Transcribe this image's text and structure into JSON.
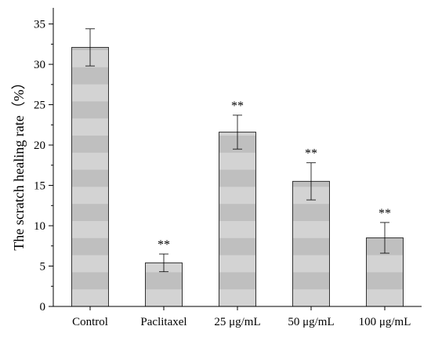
{
  "chart_data": {
    "type": "bar",
    "title": "",
    "xlabel": "",
    "ylabel": "The scratch healing rate（%）",
    "ylim": [
      0,
      37
    ],
    "yticks": [
      0,
      5,
      10,
      15,
      20,
      25,
      30,
      35
    ],
    "grid": false,
    "categories": [
      "Control",
      "Paclitaxel",
      "25 μg/mL",
      "50 μg/mL",
      "100 μg/mL"
    ],
    "values": [
      32.1,
      5.4,
      21.6,
      15.5,
      8.5
    ],
    "errors": [
      2.3,
      1.1,
      2.1,
      2.3,
      1.9
    ],
    "significance": [
      "",
      "**",
      "**",
      "**",
      "**"
    ],
    "bar_fill_pattern": "horizontal-stripes",
    "colors": {
      "stripe_dark": "#bfbfbf",
      "stripe_light": "#d3d3d3",
      "bar_outline": "#333333",
      "axis": "#000000"
    }
  }
}
